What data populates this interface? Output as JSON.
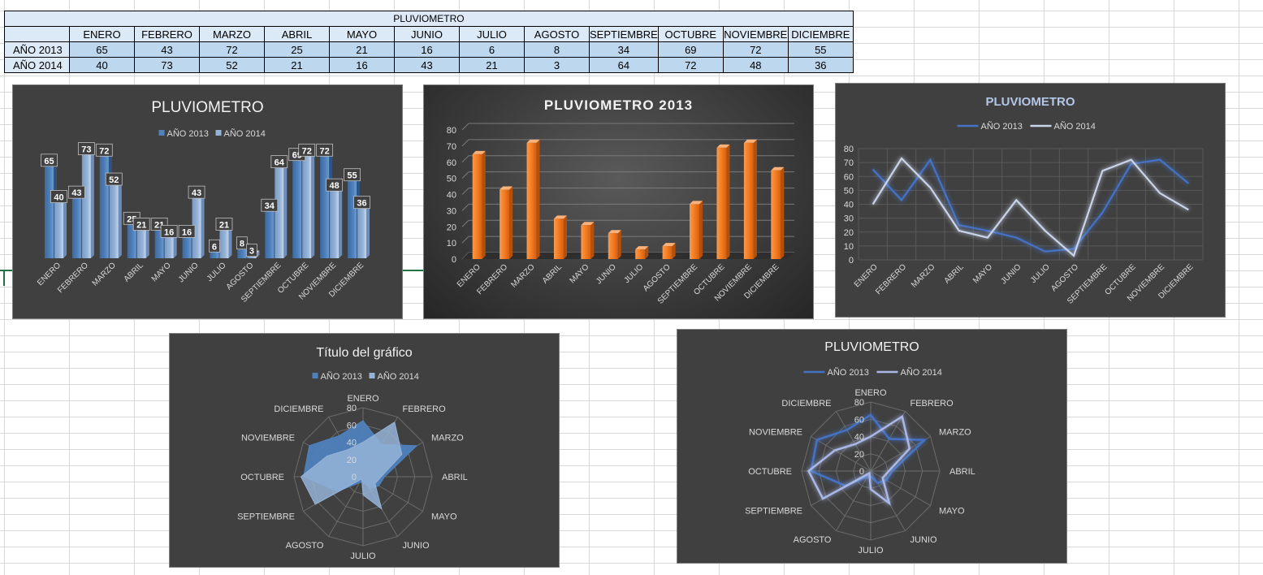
{
  "table": {
    "title": "PLUVIOMETRO",
    "months": [
      "ENERO",
      "FEBRERO",
      "MARZO",
      "ABRIL",
      "MAYO",
      "JUNIO",
      "JULIO",
      "AGOSTO",
      "SEPTIEMBRE",
      "OCTUBRE",
      "NOVIEMBRE",
      "DICIEMBRE"
    ],
    "rows": [
      {
        "label": "AÑO 2013",
        "values": [
          65,
          43,
          72,
          25,
          21,
          16,
          6,
          8,
          34,
          69,
          72,
          55
        ]
      },
      {
        "label": "AÑO 2014",
        "values": [
          40,
          73,
          52,
          21,
          16,
          43,
          21,
          3,
          64,
          72,
          48,
          36
        ]
      }
    ]
  },
  "chart_data": [
    {
      "type": "bar",
      "title": "PLUVIOMETRO",
      "categories": [
        "ENERO",
        "FEBRERO",
        "MARZO",
        "ABRIL",
        "MAYO",
        "JUNIO",
        "JULIO",
        "AGOSTO",
        "SEPTIEMBRE",
        "OCTUBRE",
        "NOVIEMBRE",
        "DICIEMBRE"
      ],
      "series": [
        {
          "name": "AÑO 2013",
          "values": [
            65,
            43,
            72,
            25,
            21,
            16,
            6,
            8,
            34,
            69,
            72,
            55
          ],
          "color": "#4f81bd"
        },
        {
          "name": "AÑO 2014",
          "values": [
            40,
            73,
            52,
            21,
            16,
            43,
            21,
            3,
            64,
            72,
            48,
            36
          ],
          "color": "#95b3d7"
        }
      ],
      "ylim": [
        0,
        80
      ],
      "data_labels": true,
      "legend": "top",
      "grid": false
    },
    {
      "type": "bar",
      "title": "PLUVIOMETRO 2013",
      "categories": [
        "ENERO",
        "FEBRERO",
        "MARZO",
        "ABRIL",
        "MAYO",
        "JUNIO",
        "JULIO",
        "AGOSTO",
        "SEPTIEMBRE",
        "OCTUBRE",
        "NOVIEMBRE",
        "DICIEMBRE"
      ],
      "series": [
        {
          "name": "AÑO 2013",
          "values": [
            65,
            43,
            72,
            25,
            21,
            16,
            6,
            8,
            34,
            69,
            72,
            55
          ],
          "color": "#f47b20"
        }
      ],
      "yticks": [
        0,
        10,
        20,
        30,
        40,
        50,
        60,
        70,
        80
      ],
      "ylim": [
        0,
        80
      ],
      "legend": "none",
      "grid": true
    },
    {
      "type": "line",
      "title": "PLUVIOMETRO",
      "categories": [
        "ENERO",
        "FEBRERO",
        "MARZO",
        "ABRIL",
        "MAYO",
        "JUNIO",
        "JULIO",
        "AGOSTO",
        "SEPTIEMBRE",
        "OCTUBRE",
        "NOVIEMBRE",
        "DICIEMBRE"
      ],
      "series": [
        {
          "name": "AÑO 2013",
          "values": [
            65,
            43,
            72,
            25,
            21,
            16,
            6,
            8,
            34,
            69,
            72,
            55
          ],
          "color": "#4472c4"
        },
        {
          "name": "AÑO 2014",
          "values": [
            40,
            73,
            52,
            21,
            16,
            43,
            21,
            3,
            64,
            72,
            48,
            36
          ],
          "color": "#c9d3ea"
        }
      ],
      "yticks": [
        0,
        10,
        20,
        30,
        40,
        50,
        60,
        70,
        80
      ],
      "ylim": [
        0,
        80
      ],
      "legend": "top",
      "grid": true
    },
    {
      "type": "radar",
      "title": "Título del gráfico",
      "categories": [
        "ENERO",
        "FEBRERO",
        "MARZO",
        "ABRIL",
        "MAYO",
        "JUNIO",
        "JULIO",
        "AGOSTO",
        "SEPTIEMBRE",
        "OCTUBRE",
        "NOVIEMBRE",
        "DICIEMBRE"
      ],
      "series": [
        {
          "name": "AÑO 2013",
          "values": [
            65,
            43,
            72,
            25,
            21,
            16,
            6,
            8,
            34,
            69,
            72,
            55
          ],
          "color": "#4f81bd"
        },
        {
          "name": "AÑO 2014",
          "values": [
            40,
            73,
            52,
            21,
            16,
            43,
            21,
            3,
            64,
            72,
            48,
            36
          ],
          "color": "#95b3d7"
        }
      ],
      "yticks": [
        0,
        20,
        40,
        60,
        80
      ],
      "ylim": [
        0,
        80
      ],
      "filled": true,
      "legend": "top"
    },
    {
      "type": "radar",
      "title": "PLUVIOMETRO",
      "categories": [
        "ENERO",
        "FEBRERO",
        "MARZO",
        "ABRIL",
        "MAYO",
        "JUNIO",
        "JULIO",
        "AGOSTO",
        "SEPTIEMBRE",
        "OCTUBRE",
        "NOVIEMBRE",
        "DICIEMBRE"
      ],
      "series": [
        {
          "name": "AÑO 2013",
          "values": [
            65,
            43,
            72,
            25,
            21,
            16,
            6,
            8,
            34,
            69,
            72,
            55
          ],
          "color": "#4472c4"
        },
        {
          "name": "AÑO 2014",
          "values": [
            40,
            73,
            52,
            21,
            16,
            43,
            21,
            3,
            64,
            72,
            48,
            36
          ],
          "color": "#a9b8e6"
        }
      ],
      "yticks": [
        0,
        20,
        40,
        60,
        80
      ],
      "ylim": [
        0,
        80
      ],
      "filled": false,
      "legend": "top"
    }
  ]
}
